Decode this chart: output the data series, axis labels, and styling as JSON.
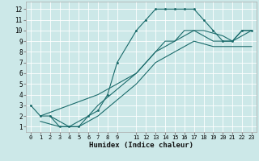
{
  "xlabel": "Humidex (Indice chaleur)",
  "bg_color": "#cce8e8",
  "grid_color": "#ffffff",
  "line_color": "#1a6b6b",
  "xlim": [
    -0.5,
    23.5
  ],
  "ylim": [
    0.5,
    12.7
  ],
  "xticks": [
    0,
    1,
    2,
    3,
    4,
    5,
    6,
    7,
    8,
    9,
    11,
    12,
    13,
    14,
    15,
    16,
    17,
    18,
    19,
    20,
    21,
    22,
    23
  ],
  "yticks": [
    1,
    2,
    3,
    4,
    5,
    6,
    7,
    8,
    9,
    10,
    11,
    12
  ],
  "curve1_x": [
    0,
    1,
    2,
    3,
    4,
    5,
    6,
    7,
    8,
    9,
    11,
    12,
    13,
    14,
    15,
    16,
    17,
    18,
    19,
    20,
    21,
    22,
    23
  ],
  "curve1_y": [
    3,
    2,
    2,
    1,
    1,
    1,
    2,
    2.5,
    4,
    7,
    10,
    11,
    12,
    12,
    12,
    12,
    12,
    11,
    10,
    9,
    9,
    10,
    10
  ],
  "diag1_x": [
    1,
    7,
    9,
    11,
    13,
    14,
    15,
    16,
    17,
    18,
    20,
    21,
    22,
    23
  ],
  "diag1_y": [
    2,
    4,
    5,
    6,
    8,
    9,
    9,
    10,
    10,
    10,
    9.5,
    9,
    10,
    10
  ],
  "diag2_x": [
    2,
    4,
    6,
    7,
    9,
    11,
    13,
    15,
    17,
    19,
    21,
    22,
    23
  ],
  "diag2_y": [
    2,
    1,
    2,
    3,
    4.5,
    6,
    8,
    9,
    10,
    9,
    9,
    9.5,
    10
  ],
  "diag3_x": [
    1,
    3,
    4,
    5,
    6,
    7,
    9,
    11,
    13,
    15,
    17,
    19,
    21,
    23
  ],
  "diag3_y": [
    1.5,
    1,
    1,
    1,
    1.5,
    2,
    3.5,
    5,
    7,
    8,
    9,
    8.5,
    8.5,
    8.5
  ]
}
